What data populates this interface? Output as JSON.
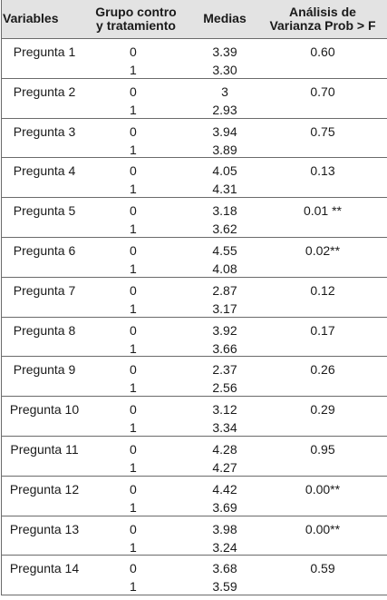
{
  "header": {
    "variables": "Variables",
    "grupo_line1": "Grupo contro",
    "grupo_line2": "y tratamiento",
    "medias": "Medias",
    "anova_line1": "Análisis de",
    "anova_line2": "Varianza Prob > F"
  },
  "rows": [
    {
      "variable": "Pregunta 1",
      "g0": "0",
      "g1": "1",
      "m0": "3.39",
      "m1": "3.30",
      "p": "0.60"
    },
    {
      "variable": "Pregunta 2",
      "g0": "0",
      "g1": "1",
      "m0": "3",
      "m1": "2.93",
      "p": "0.70"
    },
    {
      "variable": "Pregunta 3",
      "g0": "0",
      "g1": "1",
      "m0": "3.94",
      "m1": "3.89",
      "p": "0.75"
    },
    {
      "variable": "Pregunta 4",
      "g0": "0",
      "g1": "1",
      "m0": "4.05",
      "m1": "4.31",
      "p": "0.13"
    },
    {
      "variable": "Pregunta 5",
      "g0": "0",
      "g1": "1",
      "m0": "3.18",
      "m1": "3.62",
      "p": "0.01 **"
    },
    {
      "variable": "Pregunta 6",
      "g0": "0",
      "g1": "1",
      "m0": "4.55",
      "m1": "4.08",
      "p": "0.02**"
    },
    {
      "variable": "Pregunta 7",
      "g0": "0",
      "g1": "1",
      "m0": "2.87",
      "m1": "3.17",
      "p": "0.12"
    },
    {
      "variable": "Pregunta 8",
      "g0": "0",
      "g1": "1",
      "m0": "3.92",
      "m1": "3.66",
      "p": "0.17"
    },
    {
      "variable": "Pregunta 9",
      "g0": "0",
      "g1": "1",
      "m0": "2.37",
      "m1": "2.56",
      "p": "0.26"
    },
    {
      "variable": "Pregunta 10",
      "g0": "0",
      "g1": "1",
      "m0": "3.12",
      "m1": "3.34",
      "p": "0.29"
    },
    {
      "variable": "Pregunta 11",
      "g0": "0",
      "g1": "1",
      "m0": "4.28",
      "m1": "4.27",
      "p": "0.95"
    },
    {
      "variable": "Pregunta 12",
      "g0": "0",
      "g1": "1",
      "m0": "4.42",
      "m1": "3.69",
      "p": "0.00**"
    },
    {
      "variable": "Pregunta 13",
      "g0": "0",
      "g1": "1",
      "m0": "3.98",
      "m1": "3.24",
      "p": "0.00**"
    },
    {
      "variable": "Pregunta 14",
      "g0": "0",
      "g1": "1",
      "m0": "3.68",
      "m1": "3.59",
      "p": "0.59"
    }
  ]
}
